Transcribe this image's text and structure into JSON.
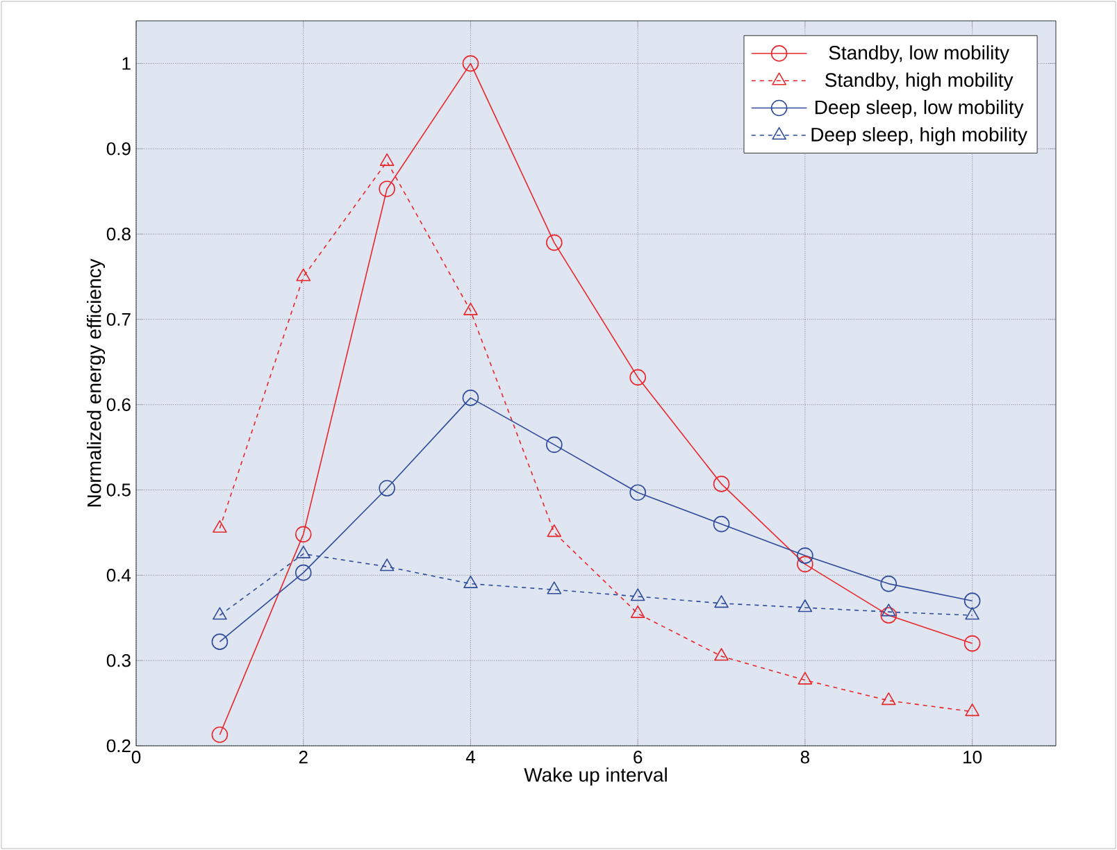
{
  "chart_data": {
    "type": "line",
    "xlabel": "Wake up interval",
    "ylabel": "Normalized energy efficiency",
    "x": [
      1,
      2,
      3,
      4,
      5,
      6,
      7,
      8,
      9,
      10
    ],
    "xlim": [
      0,
      11
    ],
    "xticks": [
      0,
      2,
      4,
      6,
      8,
      10
    ],
    "ylim": [
      0.2,
      1.05
    ],
    "yticks": [
      0.2,
      0.3,
      0.4,
      0.5,
      0.6,
      0.7,
      0.8,
      0.9,
      1
    ],
    "grid": true,
    "legend": "top right",
    "series": [
      {
        "name": "Standby, low mobility",
        "color": "#e8262a",
        "marker": "circle",
        "line_style": "solid",
        "values": [
          0.213,
          0.448,
          0.853,
          1.0,
          0.79,
          0.632,
          0.507,
          0.413,
          0.353,
          0.32
        ]
      },
      {
        "name": "Standby, high mobility",
        "color": "#e8262a",
        "marker": "triangle",
        "line_style": "dashed",
        "values": [
          0.455,
          0.75,
          0.885,
          0.71,
          0.45,
          0.355,
          0.305,
          0.277,
          0.253,
          0.24
        ]
      },
      {
        "name": "Deep sleep, low mobility",
        "color": "#2e4a9a",
        "marker": "circle",
        "line_style": "solid",
        "values": [
          0.322,
          0.403,
          0.502,
          0.608,
          0.553,
          0.497,
          0.46,
          0.423,
          0.39,
          0.37
        ]
      },
      {
        "name": "Deep sleep, high mobility",
        "color": "#2e4a9a",
        "marker": "triangle",
        "line_style": "dashed",
        "values": [
          0.353,
          0.425,
          0.41,
          0.39,
          0.383,
          0.375,
          0.367,
          0.362,
          0.357,
          0.353
        ]
      }
    ]
  }
}
